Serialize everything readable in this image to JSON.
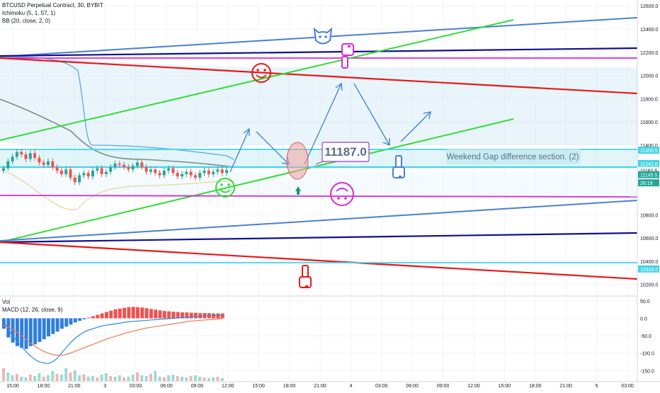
{
  "header": {
    "symbol_line": "BTCUSD Perpetual Contract, 30, BYBIT",
    "indicator_1": "Ichimoku (5, 1, 57, 1)",
    "indicator_2": "BB (20, close, 2, 0)"
  },
  "lower_panel": {
    "vol_label": "Vol",
    "macd_label": "MACD (12, 26, close, 9)"
  },
  "annotations": {
    "price_callout": "11187.0",
    "weekend_gap_note": "Weekend Gap difference section. (2)"
  },
  "colors": {
    "up_candle": "#26a69a",
    "down_candle": "#ef5350",
    "trend_green": "#33dd33",
    "trend_red": "#e81818",
    "trend_navy": "#101090",
    "trend_blue": "#4a7fd4",
    "level_cyan": "#45d4e6",
    "level_magenta": "#d829d8",
    "histogram_blue": "#2f7ee0",
    "histogram_red": "#ef5350"
  },
  "chart_data": [
    {
      "type": "line",
      "panel": "price",
      "ylim": [
        10100,
        12650
      ],
      "y_ticks": [
        "12600.0",
        "12400.0",
        "12200.0",
        "12000.0",
        "11800.0",
        "11600.0",
        "11400.0",
        "10800.0",
        "10600.0",
        "10400.0",
        "10200.0"
      ],
      "price_labels": [
        {
          "text": "11355.5",
          "y": 11355.5,
          "bg": "#45d4e6"
        },
        {
          "text": "11241.0",
          "y": 11241,
          "bg": "#45d4e6"
        },
        {
          "text": "11182.5",
          "y": 11182.5,
          "bg": "#ffffff"
        },
        {
          "text": "11145.5",
          "y": 11145.5,
          "bg": "#26a69a"
        },
        {
          "text": "26:19",
          "y": 11075,
          "bg": "#26a69a"
        },
        {
          "text": "10333.0",
          "y": 10333,
          "bg": "#45d4e6"
        }
      ],
      "x_ticks": [
        "15:00",
        "18:00",
        "21:00",
        "3",
        "03:00",
        "06:00",
        "09:00",
        "12:00",
        "15:00",
        "18:00",
        "21:00",
        "4",
        "03:00",
        "06:00",
        "09:00",
        "12:00",
        "15:00",
        "18:00",
        "21:00",
        "5",
        "03:00"
      ],
      "candles_close": [
        11200,
        11260,
        11300,
        11340,
        11320,
        11280,
        11330,
        11290,
        11250,
        11230,
        11260,
        11210,
        11180,
        11150,
        11190,
        11120,
        11080,
        11140,
        11160,
        11130,
        11180,
        11200,
        11150,
        11170,
        11210,
        11240,
        11230,
        11210,
        11190,
        11220,
        11250,
        11210,
        11170,
        11190,
        11160,
        11140,
        11180,
        11200,
        11160,
        11130,
        11150,
        11170,
        11140,
        11120,
        11160,
        11180,
        11150,
        11170,
        11190,
        11160,
        11185
      ]
    },
    {
      "type": "bar",
      "panel": "macd",
      "ylim": [
        -180,
        60
      ],
      "y_ticks": [
        "50.0",
        "0.0",
        "-50.0",
        "-100.0",
        "-150.0"
      ],
      "histogram": [
        -30,
        -55,
        -70,
        -80,
        -85,
        -88,
        -80,
        -75,
        -68,
        -60,
        -52,
        -45,
        -38,
        -30,
        -24,
        -18,
        -12,
        -7,
        -3,
        2,
        6,
        10,
        14,
        18,
        22,
        26,
        28,
        30,
        32,
        33,
        32,
        31,
        29,
        27,
        25,
        23,
        21,
        20,
        19,
        18,
        17,
        17,
        16,
        16,
        15,
        15,
        15,
        14,
        14,
        14
      ],
      "macd_line": [
        -10,
        -30,
        -50,
        -65,
        -80,
        -95,
        -108,
        -118,
        -125,
        -128,
        -130,
        -125,
        -115,
        -100,
        -85,
        -70,
        -58,
        -48,
        -40,
        -34,
        -30,
        -26,
        -22,
        -20,
        -18,
        -16,
        -14,
        -12,
        -10,
        -9,
        -8,
        -7,
        -6,
        -5,
        -4,
        -3,
        -2,
        -1,
        0,
        1,
        2,
        3,
        4,
        5,
        6,
        7,
        7,
        8,
        8,
        8
      ],
      "signal_line": [
        -20,
        -25,
        -32,
        -40,
        -50,
        -60,
        -70,
        -80,
        -88,
        -95,
        -100,
        -104,
        -106,
        -106,
        -104,
        -100,
        -95,
        -90,
        -85,
        -80,
        -75,
        -70,
        -65,
        -60,
        -56,
        -52,
        -48,
        -44,
        -40,
        -37,
        -34,
        -31,
        -28,
        -26,
        -24,
        -22,
        -20,
        -18,
        -16,
        -14,
        -12,
        -10,
        -8,
        -7,
        -6,
        -5,
        -4,
        -3,
        -2,
        -1
      ]
    }
  ]
}
